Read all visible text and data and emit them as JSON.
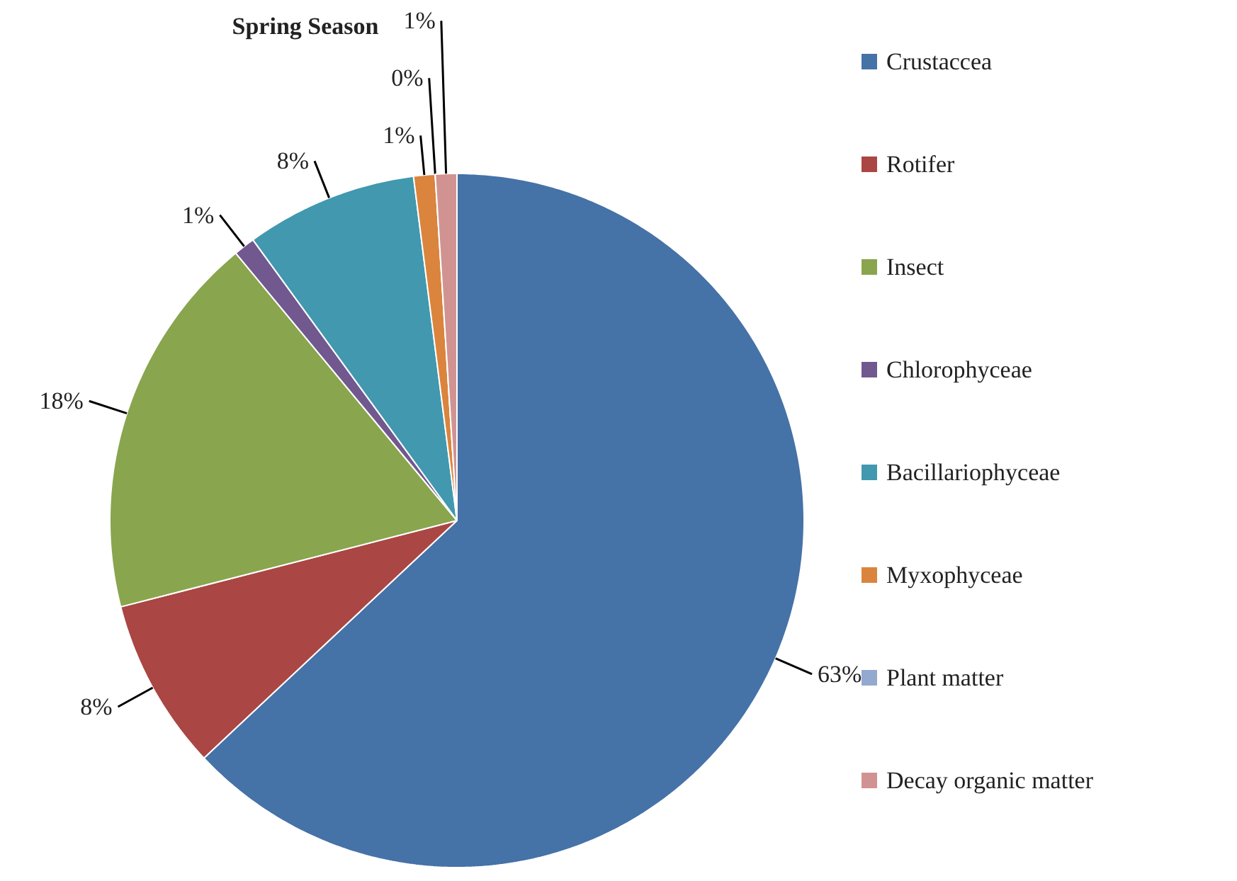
{
  "chart_data": {
    "type": "pie",
    "title": "Spring Season",
    "categories": [
      "Crustaccea",
      "Rotifer",
      "Insect",
      "Chlorophyceae",
      "Bacillariophyceae",
      "Myxophyceae",
      "Plant matter",
      "Decay organic matter"
    ],
    "values": [
      63,
      8,
      18,
      1,
      8,
      1,
      0,
      1
    ],
    "value_labels": [
      "63%",
      "8%",
      "18%",
      "1%",
      "8%",
      "1%",
      "0%",
      "1%"
    ],
    "colors": [
      "#4572a7",
      "#aa4643",
      "#89a54e",
      "#71588f",
      "#4198af",
      "#db843d",
      "#93a9cf",
      "#d19392"
    ],
    "legend": "right"
  }
}
